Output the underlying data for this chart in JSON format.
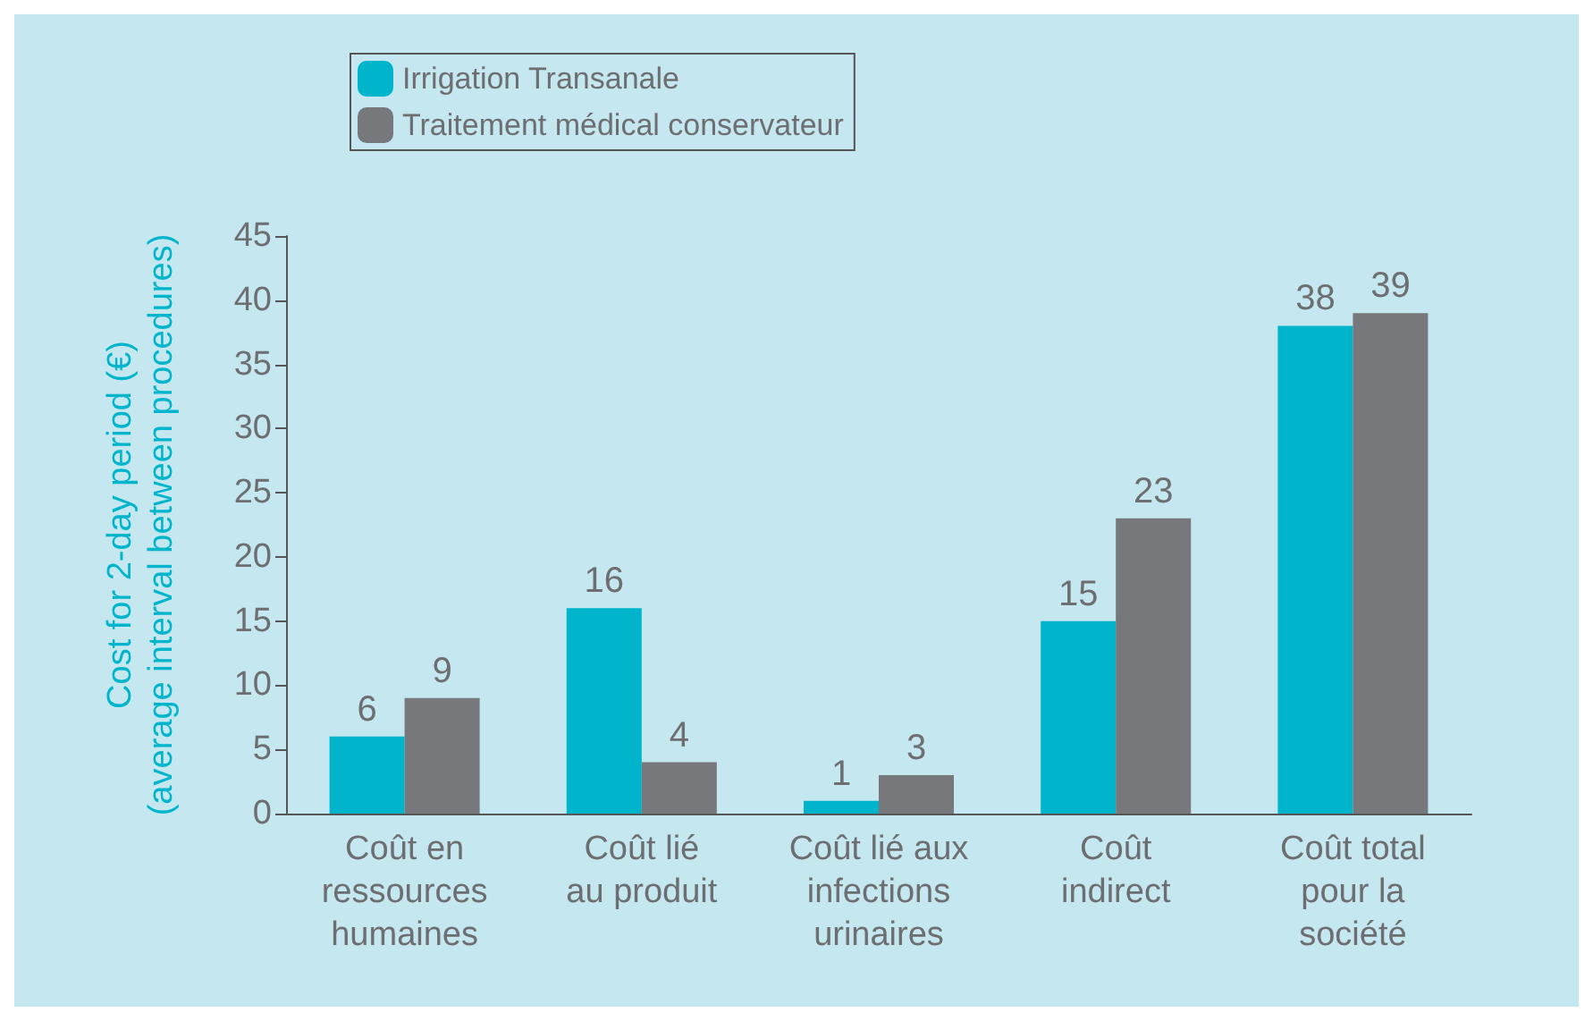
{
  "chart_data": {
    "type": "bar",
    "ylabel": "Cost for 2-day period (€)\n(average interval between procedures)",
    "categories": [
      "Coût en\nressources\nhumaines",
      "Coût lié\nau produit",
      "Coût lié aux\ninfections\nurinaires",
      "Coût\nindirect",
      "Coût total\npour la\nsociété"
    ],
    "series": [
      {
        "name": "Irrigation Transanale",
        "color": "#00b4cc",
        "values": [
          6,
          16,
          1,
          15,
          38
        ]
      },
      {
        "name": "Traitement médical conservateur",
        "color": "#77787b",
        "values": [
          9,
          4,
          3,
          23,
          39
        ]
      }
    ],
    "ylim": [
      0,
      45
    ],
    "yticks": [
      0,
      5,
      10,
      15,
      20,
      25,
      30,
      35,
      40,
      45
    ],
    "grid": false,
    "legend": "top left",
    "data_labels": true
  }
}
